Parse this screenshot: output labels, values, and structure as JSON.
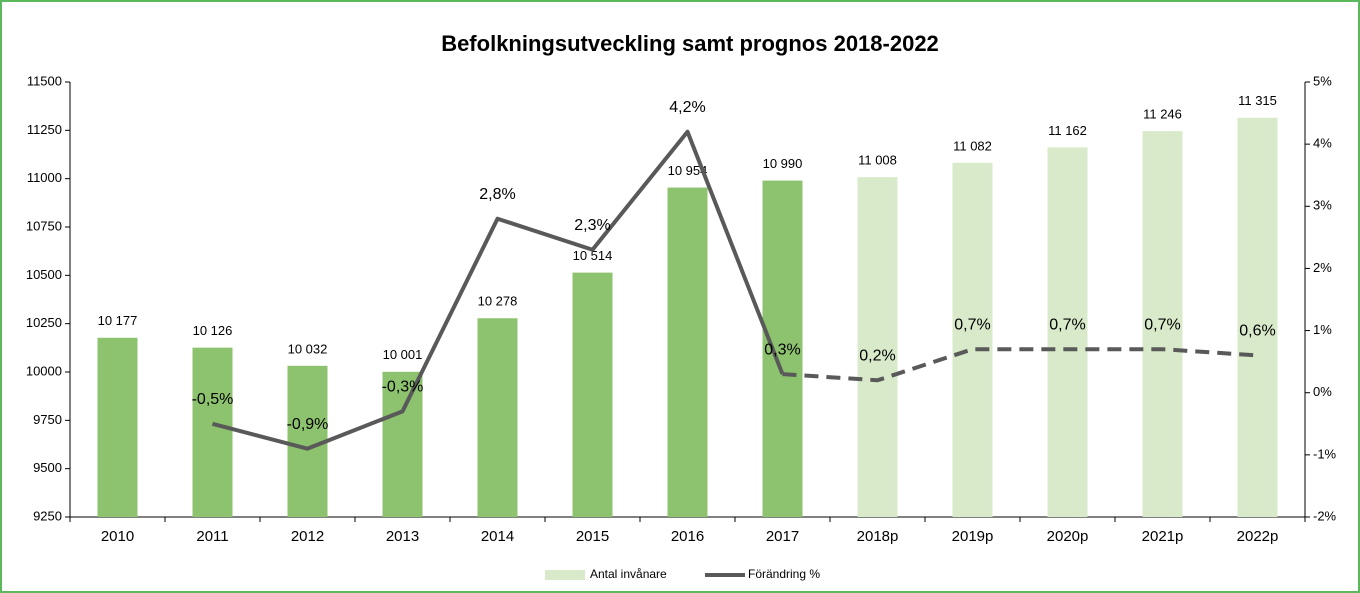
{
  "chart_data": {
    "type": "bar-line",
    "title": "Befolkningsutveckling samt prognos 2018-2022",
    "categories": [
      "2010",
      "2011",
      "2012",
      "2013",
      "2014",
      "2015",
      "2016",
      "2017",
      "2018p",
      "2019p",
      "2020p",
      "2021p",
      "2022p"
    ],
    "series": [
      {
        "name": "Antal invånare",
        "type": "bar",
        "color": "#d9eacb",
        "colors": [
          "#8dc26f",
          "#8dc26f",
          "#8dc26f",
          "#8dc26f",
          "#8dc26f",
          "#8dc26f",
          "#8dc26f",
          "#8dc26f",
          "#d9eacb",
          "#d9eacb",
          "#d9eacb",
          "#d9eacb",
          "#d9eacb"
        ],
        "values": [
          10177,
          10126,
          10032,
          10001,
          10278,
          10514,
          10954,
          10990,
          11008,
          11082,
          11162,
          11246,
          11315
        ],
        "value_labels": [
          "10 177",
          "10 126",
          "10 032",
          "10 001",
          "10 278",
          "10 514",
          "10 954",
          "10 990",
          "11 008",
          "11 082",
          "11 162",
          "11 246",
          "11 315"
        ]
      },
      {
        "name": "Förändring %",
        "type": "line",
        "axis": "y2",
        "color": "#595959",
        "values": [
          null,
          -0.5,
          -0.9,
          -0.3,
          2.8,
          2.3,
          4.2,
          0.3,
          0.2,
          0.7,
          0.7,
          0.7,
          0.6
        ],
        "dashed": [
          false,
          false,
          false,
          false,
          false,
          false,
          false,
          false,
          true,
          true,
          true,
          true,
          true
        ],
        "value_labels": [
          null,
          "-0,5%",
          "-0,9%",
          "-0,3%",
          "2,8%",
          "2,3%",
          "4,2%",
          "0,3%",
          "0,2%",
          "0,7%",
          "0,7%",
          "0,7%",
          "0,6%"
        ]
      }
    ],
    "ylim": [
      9250,
      11500
    ],
    "yticks": [
      9250,
      9500,
      9750,
      10000,
      10250,
      10500,
      10750,
      11000,
      11250,
      11500
    ],
    "y2lim": [
      -2,
      5
    ],
    "y2ticks": [
      {
        "value": -2,
        "label": "-2%"
      },
      {
        "value": -1,
        "label": "-1%"
      },
      {
        "value": 0,
        "label": "0%"
      },
      {
        "value": 1,
        "label": "1%"
      },
      {
        "value": 2,
        "label": "2%"
      },
      {
        "value": 3,
        "label": "3%"
      },
      {
        "value": 4,
        "label": "4%"
      },
      {
        "value": 5,
        "label": "5%"
      }
    ],
    "legend": "bottom"
  }
}
